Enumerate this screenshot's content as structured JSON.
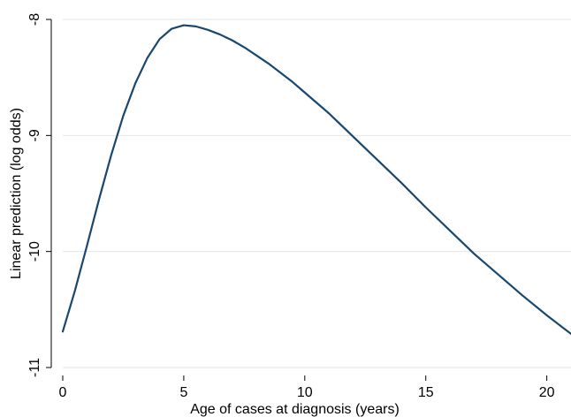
{
  "chart_data": {
    "type": "line",
    "title": "",
    "xlabel": "Age of cases at diagnosis (years)",
    "ylabel": "Linear prediction (log odds)",
    "xlim": [
      0,
      21
    ],
    "ylim": [
      -11,
      -8
    ],
    "xticks": [
      0,
      5,
      10,
      15,
      20
    ],
    "yticks": [
      -8,
      -9,
      -10,
      -11
    ],
    "xtick_labels": [
      "0",
      "5",
      "10",
      "15",
      "20"
    ],
    "ytick_labels": [
      "-8",
      "-9",
      "-10",
      "-11"
    ],
    "grid": true,
    "legend": false,
    "line_color": "#1a476f",
    "series": [
      {
        "x": [
          0,
          0.5,
          1,
          1.5,
          2,
          2.5,
          3,
          3.5,
          4,
          4.5,
          5,
          5.5,
          6,
          6.5,
          7,
          7.5,
          8,
          8.5,
          9,
          9.5,
          10,
          11,
          12,
          13,
          14,
          15,
          16,
          17,
          18,
          19,
          20,
          21
        ],
        "y": [
          -10.69,
          -10.34,
          -9.95,
          -9.55,
          -9.17,
          -8.83,
          -8.55,
          -8.33,
          -8.17,
          -8.08,
          -8.05,
          -8.06,
          -8.09,
          -8.13,
          -8.18,
          -8.24,
          -8.31,
          -8.38,
          -8.46,
          -8.54,
          -8.63,
          -8.81,
          -9.01,
          -9.21,
          -9.41,
          -9.62,
          -9.82,
          -10.02,
          -10.2,
          -10.38,
          -10.55,
          -10.71
        ]
      }
    ]
  }
}
